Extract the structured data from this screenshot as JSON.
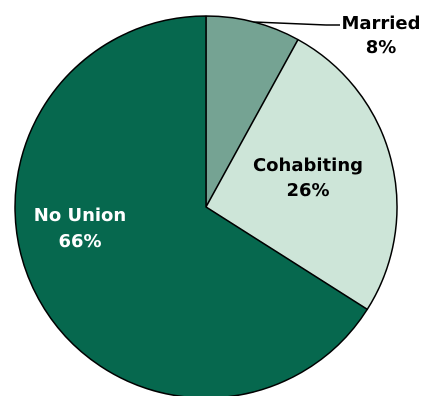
{
  "chart_data": {
    "type": "pie",
    "title": "",
    "slices": [
      {
        "label": "Married",
        "value": 8,
        "display": "8%",
        "color": "#75a393"
      },
      {
        "label": "Cohabiting",
        "value": 26,
        "display": "26%",
        "color": "#cde5d8"
      },
      {
        "label": "No Union",
        "value": 66,
        "display": "66%",
        "color": "#06684e"
      }
    ],
    "start": "12 o'clock",
    "direction": "clockwise",
    "outline_color": "#000000"
  }
}
